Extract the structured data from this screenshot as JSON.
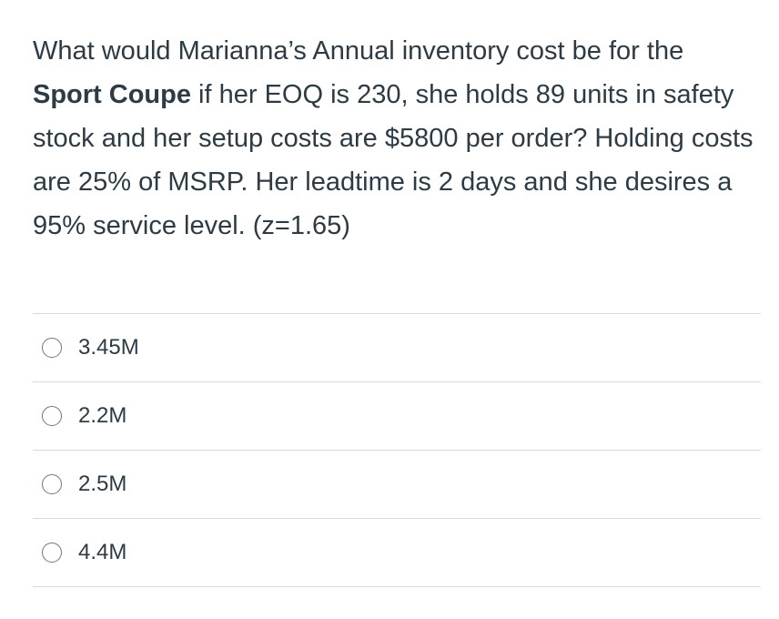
{
  "question": {
    "part1": "What would Marianna’s Annual inventory cost be for the",
    "bold": "Sport Coupe",
    "part2": " if her EOQ is 230, she holds 89 units in safety stock and her setup costs are $5800 per order? Holding costs are 25% of MSRP. Her leadtime is 2 days and she desires a 95% service level.  (z=1.65)"
  },
  "answers": [
    {
      "label": "3.45M",
      "selected": false
    },
    {
      "label": "2.2M",
      "selected": false
    },
    {
      "label": "2.5M",
      "selected": false
    },
    {
      "label": "4.4M",
      "selected": false
    }
  ]
}
